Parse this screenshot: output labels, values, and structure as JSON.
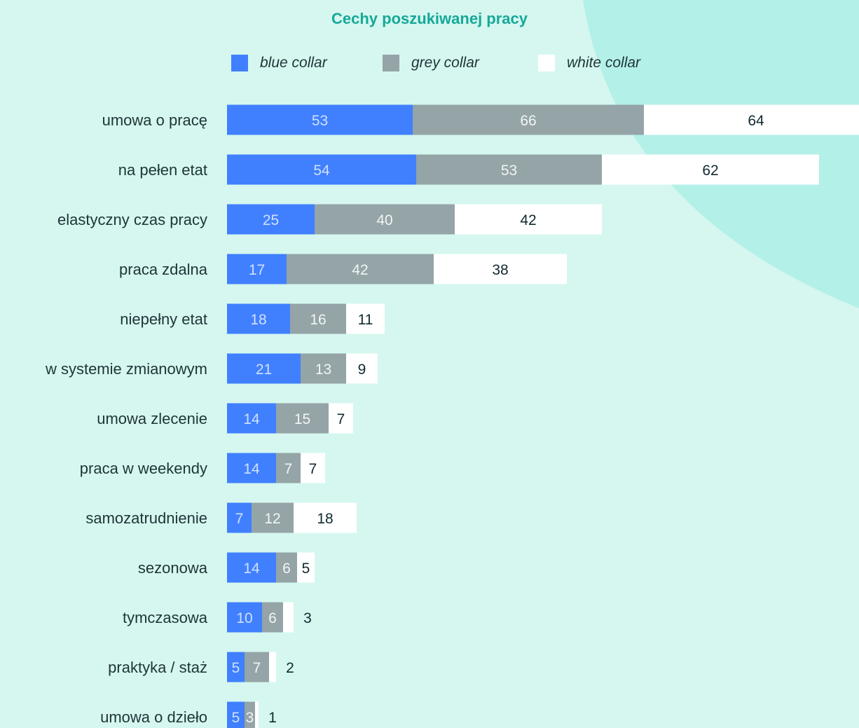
{
  "chart_data": {
    "type": "bar",
    "orientation": "horizontal",
    "stacked": true,
    "title": "Cechy poszukiwanej pracy",
    "categories": [
      "umowa o pracę",
      "na pełen etat",
      "elastyczny czas pracy",
      "praca zdalna",
      "niepełny etat",
      "w systemie zmianowym",
      "umowa zlecenie",
      "praca w weekendy",
      "samozatrudnienie",
      "sezonowa",
      "tymczasowa",
      "praktyka / staż",
      "umowa o dzieło"
    ],
    "series": [
      {
        "name": "blue collar",
        "color": "#4080ff",
        "label_color": "#cfe0ff",
        "values": [
          53,
          54,
          25,
          17,
          18,
          21,
          14,
          14,
          7,
          14,
          10,
          5,
          5
        ]
      },
      {
        "name": "grey collar",
        "color": "#94a4a7",
        "label_color": "#f2f5f5",
        "values": [
          66,
          53,
          40,
          42,
          16,
          13,
          15,
          7,
          12,
          6,
          6,
          7,
          3
        ]
      },
      {
        "name": "white collar",
        "color": "#ffffff",
        "label_color": "#102a30",
        "values": [
          64,
          62,
          42,
          38,
          11,
          9,
          7,
          7,
          18,
          5,
          3,
          2,
          1
        ]
      }
    ],
    "legend_position": "top",
    "grid": false,
    "axes_visible": false
  }
}
